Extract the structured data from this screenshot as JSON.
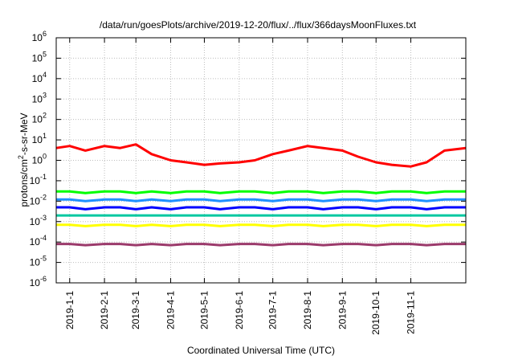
{
  "chart_data": {
    "type": "line",
    "title": "/data/run/goesPlots/archive/2019-12-20/flux/../flux/366daysMoonFluxes.txt",
    "xlabel": "Coordinated Universal Time (UTC)",
    "ylabel": "protons/cm²-s-sr-MeV",
    "yscale": "log",
    "ylim": [
      1e-06,
      1000000.0
    ],
    "xlim": [
      "2018-12-20",
      "2019-12-20"
    ],
    "grid": true,
    "legend": "none",
    "x_ticks": [
      "2019-1-1",
      "2019-2-1",
      "2019-3-1",
      "2019-4-1",
      "2019-5-1",
      "2019-6-1",
      "2019-7-1",
      "2019-8-1",
      "2019-9-1",
      "2019-10-1",
      "2019-11-1"
    ],
    "y_ticks": [
      {
        "base": "10",
        "exp": "-6"
      },
      {
        "base": "10",
        "exp": "-5"
      },
      {
        "base": "10",
        "exp": "-4"
      },
      {
        "base": "10",
        "exp": "-3"
      },
      {
        "base": "10",
        "exp": "-2"
      },
      {
        "base": "10",
        "exp": "-1"
      },
      {
        "base": "10",
        "exp": "0"
      },
      {
        "base": "10",
        "exp": "1"
      },
      {
        "base": "10",
        "exp": "2"
      },
      {
        "base": "10",
        "exp": "3"
      },
      {
        "base": "10",
        "exp": "4"
      },
      {
        "base": "10",
        "exp": "5"
      },
      {
        "base": "10",
        "exp": "6"
      }
    ],
    "x": [
      "2018-12-20",
      "2019-01-01",
      "2019-01-15",
      "2019-02-01",
      "2019-02-15",
      "2019-03-01",
      "2019-03-15",
      "2019-04-01",
      "2019-04-15",
      "2019-05-01",
      "2019-05-15",
      "2019-06-01",
      "2019-06-15",
      "2019-07-01",
      "2019-07-15",
      "2019-08-01",
      "2019-08-15",
      "2019-09-01",
      "2019-09-15",
      "2019-10-01",
      "2019-10-15",
      "2019-11-01",
      "2019-11-15",
      "2019-12-01",
      "2019-12-20"
    ],
    "series": [
      {
        "color": "#ff0000",
        "values": [
          4,
          5,
          3,
          5,
          4,
          6,
          2,
          1,
          0.8,
          0.6,
          0.7,
          0.8,
          1,
          2,
          3,
          5,
          4,
          3,
          1.5,
          0.8,
          0.6,
          0.5,
          0.8,
          3,
          4
        ]
      },
      {
        "color": "#00ff00",
        "values": [
          0.03,
          0.03,
          0.025,
          0.03,
          0.03,
          0.025,
          0.03,
          0.025,
          0.03,
          0.03,
          0.025,
          0.03,
          0.03,
          0.025,
          0.03,
          0.03,
          0.025,
          0.03,
          0.03,
          0.025,
          0.03,
          0.03,
          0.025,
          0.03,
          0.03
        ]
      },
      {
        "color": "#1e90ff",
        "values": [
          0.012,
          0.012,
          0.01,
          0.012,
          0.012,
          0.01,
          0.012,
          0.01,
          0.012,
          0.012,
          0.01,
          0.012,
          0.012,
          0.01,
          0.012,
          0.012,
          0.01,
          0.012,
          0.012,
          0.01,
          0.012,
          0.012,
          0.01,
          0.012,
          0.012
        ]
      },
      {
        "color": "#00c8a0",
        "values": [
          0.002,
          0.002,
          0.002,
          0.002,
          0.002,
          0.002,
          0.002,
          0.002,
          0.002,
          0.002,
          0.002,
          0.002,
          0.002,
          0.002,
          0.002,
          0.002,
          0.002,
          0.002,
          0.002,
          0.002,
          0.002,
          0.002,
          0.002,
          0.002,
          0.002
        ]
      },
      {
        "color": "#0000ff",
        "values": [
          0.005,
          0.005,
          0.004,
          0.005,
          0.005,
          0.004,
          0.005,
          0.004,
          0.005,
          0.005,
          0.004,
          0.005,
          0.005,
          0.004,
          0.005,
          0.005,
          0.004,
          0.005,
          0.005,
          0.004,
          0.005,
          0.005,
          0.004,
          0.005,
          0.005
        ]
      },
      {
        "color": "#ffff00",
        "values": [
          0.0007,
          0.0007,
          0.0006,
          0.0007,
          0.0007,
          0.0006,
          0.0007,
          0.0006,
          0.0007,
          0.0007,
          0.0006,
          0.0007,
          0.0007,
          0.0006,
          0.0007,
          0.0007,
          0.0006,
          0.0007,
          0.0007,
          0.0006,
          0.0007,
          0.0007,
          0.0006,
          0.0007,
          0.0007
        ]
      },
      {
        "color": "#9b3a6b",
        "values": [
          8e-05,
          8e-05,
          7e-05,
          8e-05,
          8e-05,
          7e-05,
          8e-05,
          7e-05,
          8e-05,
          8e-05,
          7e-05,
          8e-05,
          8e-05,
          7e-05,
          8e-05,
          8e-05,
          7e-05,
          8e-05,
          8e-05,
          7e-05,
          8e-05,
          8e-05,
          7e-05,
          8e-05,
          8e-05
        ]
      }
    ]
  }
}
